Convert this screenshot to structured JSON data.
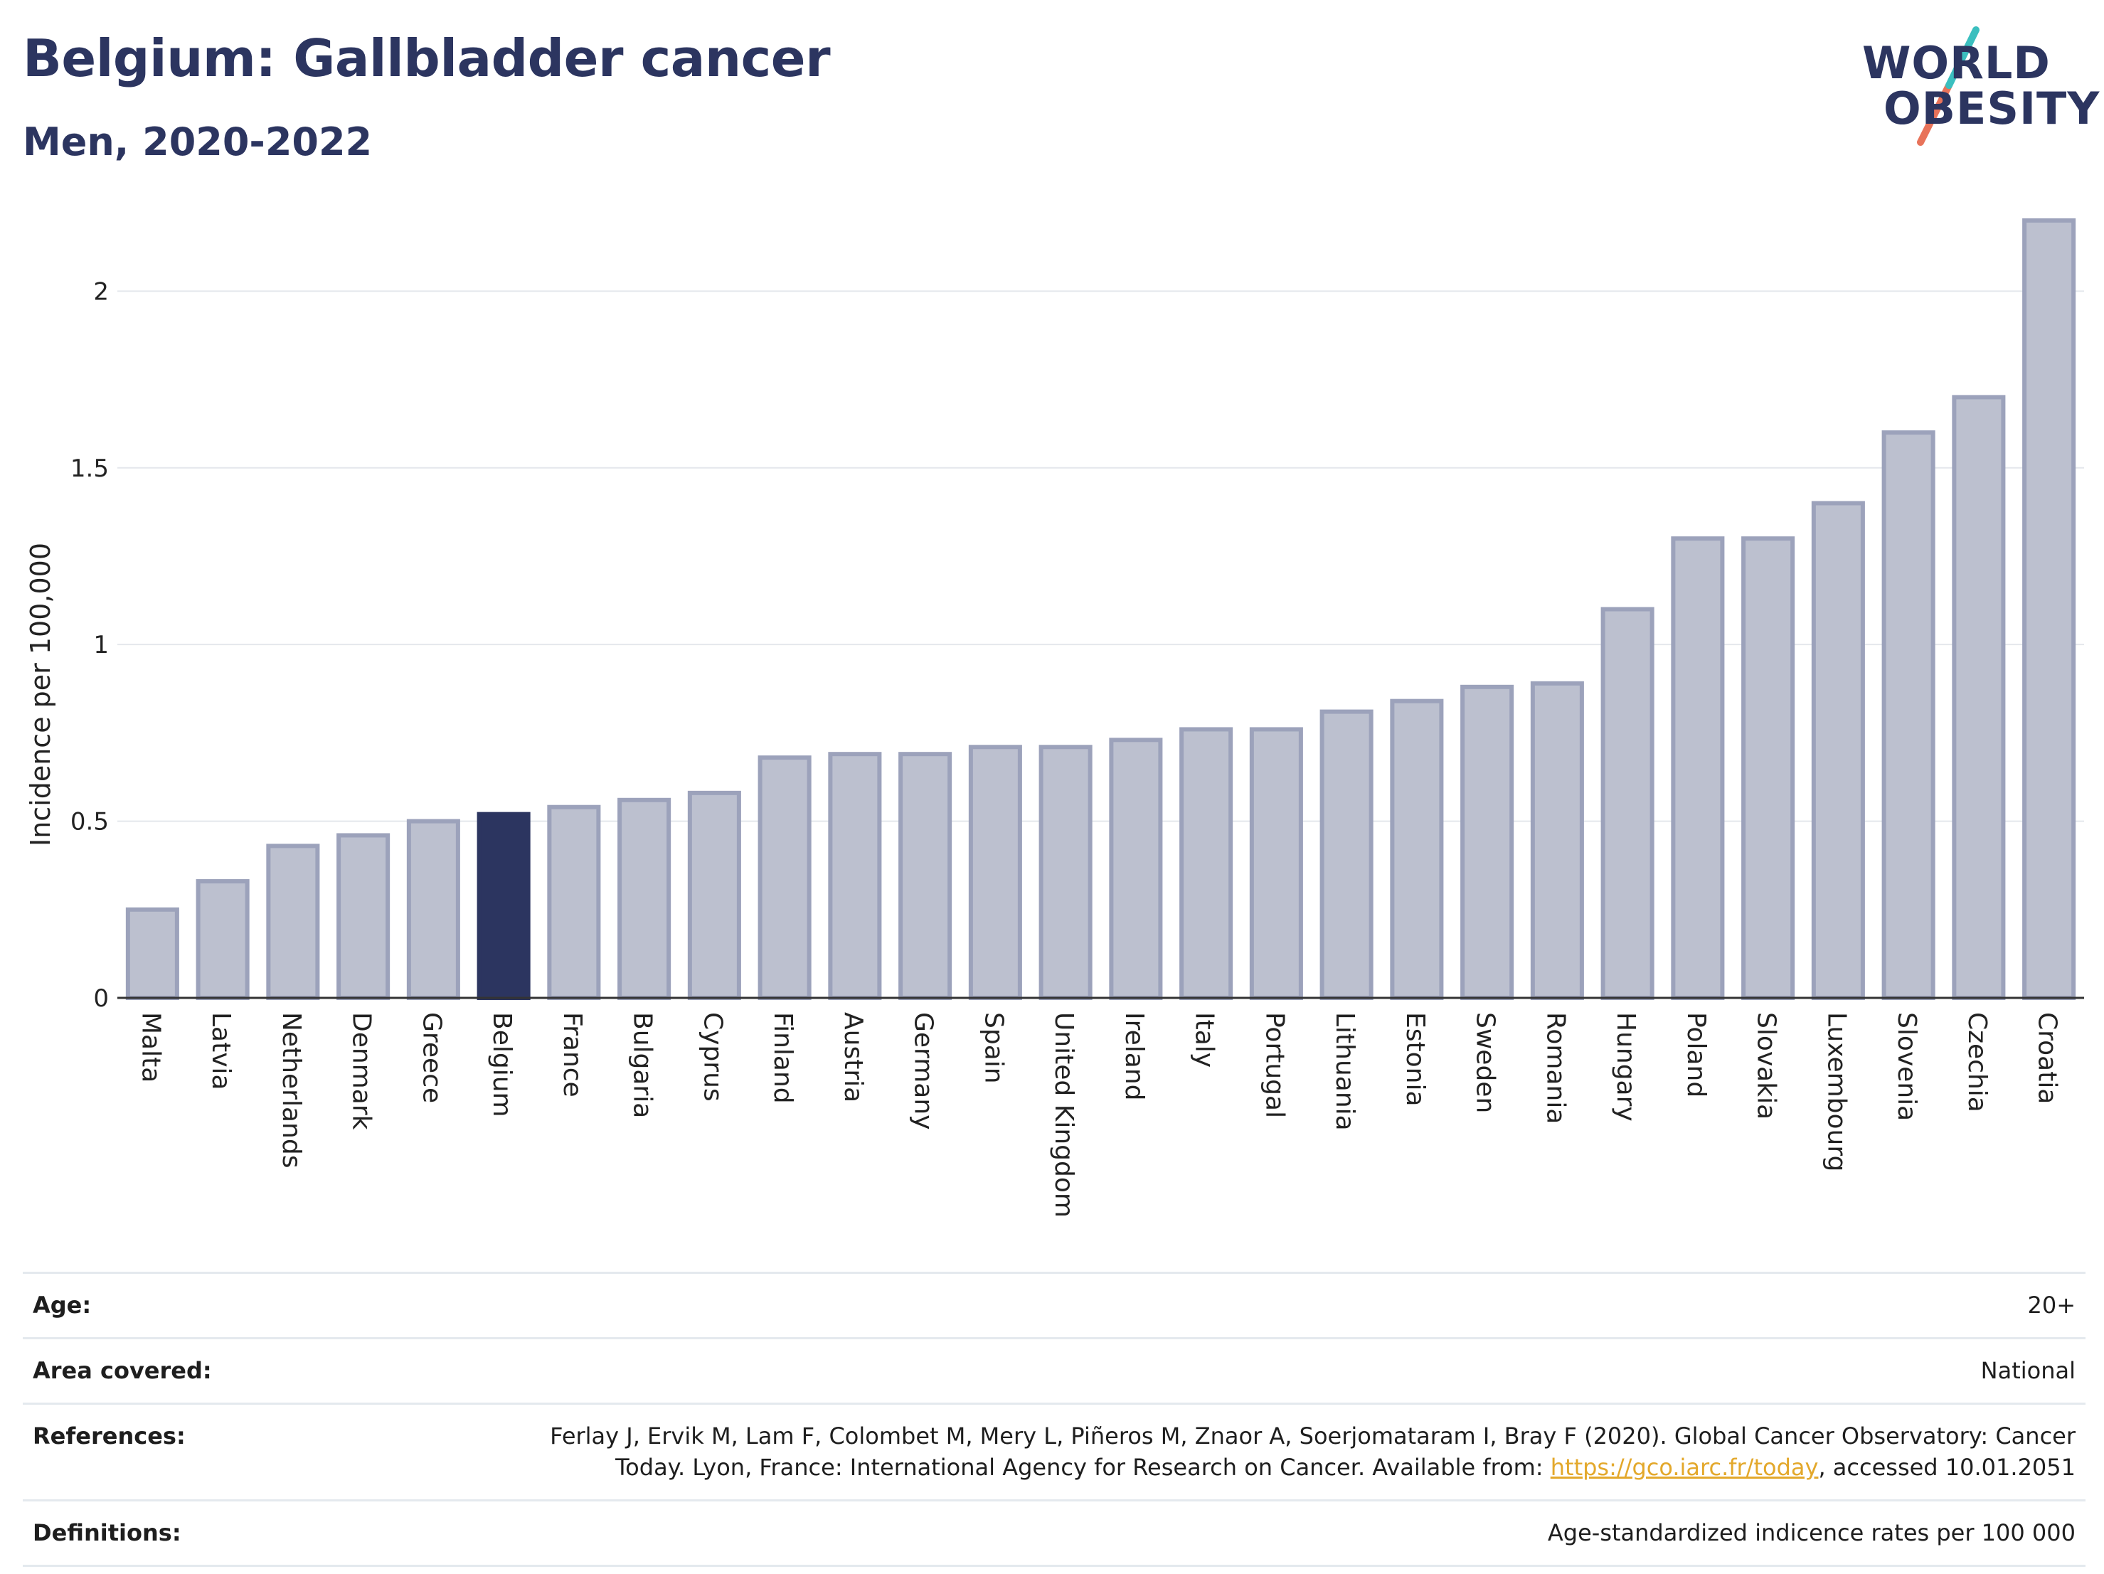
{
  "header": {
    "title": "Belgium: Gallbladder cancer",
    "subtitle": "Men, 2020-2022"
  },
  "logo": {
    "line1": "WORLD",
    "line2": "OBESITY",
    "accent_colors": [
      "#3bbfbf",
      "#e8735a"
    ]
  },
  "chart_data": {
    "type": "bar",
    "ylabel": "Incidence per 100,000",
    "ylim": [
      0,
      2.2
    ],
    "yticks": [
      0,
      0.5,
      1,
      1.5,
      2
    ],
    "ytick_labels": [
      "0",
      "0.5",
      "1",
      "1.5",
      "2"
    ],
    "grid": true,
    "highlight": "Belgium",
    "colors": {
      "bar": "#bcc0cf",
      "bar_border": "#9ca2bb",
      "highlight": "#2c3560",
      "grid": "#e4e7ec",
      "axis": "#333333"
    },
    "categories": [
      "Malta",
      "Latvia",
      "Netherlands",
      "Denmark",
      "Greece",
      "Belgium",
      "France",
      "Bulgaria",
      "Cyprus",
      "Finland",
      "Austria",
      "Germany",
      "Spain",
      "United Kingdom",
      "Ireland",
      "Italy",
      "Portugal",
      "Lithuania",
      "Estonia",
      "Sweden",
      "Romania",
      "Hungary",
      "Poland",
      "Slovakia",
      "Luxembourg",
      "Slovenia",
      "Czechia",
      "Croatia"
    ],
    "values": [
      0.25,
      0.33,
      0.43,
      0.46,
      0.5,
      0.52,
      0.54,
      0.56,
      0.58,
      0.68,
      0.69,
      0.69,
      0.71,
      0.71,
      0.73,
      0.76,
      0.76,
      0.81,
      0.84,
      0.88,
      0.89,
      1.1,
      1.3,
      1.3,
      1.4,
      1.6,
      1.7,
      2.2
    ]
  },
  "info": {
    "age_label": "Age:",
    "age_value": "20+",
    "area_label": "Area covered:",
    "area_value": "National",
    "references_label": "References:",
    "references_line1": "Ferlay J, Ervik M, Lam F, Colombet M, Mery L, Piñeros M, Znaor A, Soerjomataram I, Bray F (2020). Global Cancer Observatory: Cancer",
    "references_line2_pre": "Today. Lyon, France: International Agency for Research on Cancer. Available from: ",
    "references_link": "https://gco.iarc.fr/today",
    "references_line2_post": ", accessed 10.01.2051",
    "definitions_label": "Definitions:",
    "definitions_value": "Age-standardized indicence rates per 100 000"
  }
}
